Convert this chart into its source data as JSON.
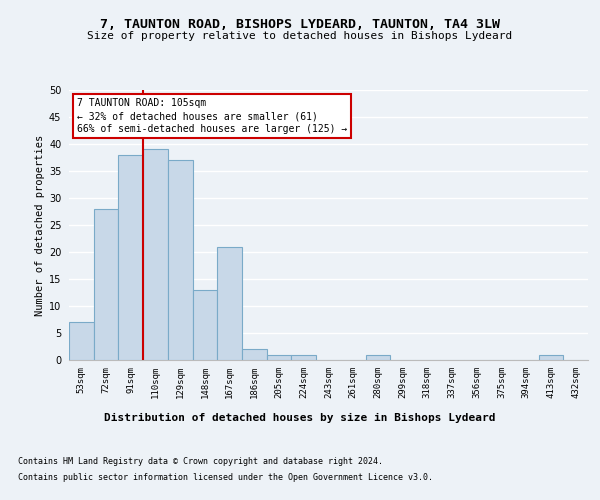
{
  "title": "7, TAUNTON ROAD, BISHOPS LYDEARD, TAUNTON, TA4 3LW",
  "subtitle": "Size of property relative to detached houses in Bishops Lydeard",
  "xlabel": "Distribution of detached houses by size in Bishops Lydeard",
  "ylabel": "Number of detached properties",
  "categories": [
    "53sqm",
    "72sqm",
    "91sqm",
    "110sqm",
    "129sqm",
    "148sqm",
    "167sqm",
    "186sqm",
    "205sqm",
    "224sqm",
    "243sqm",
    "261sqm",
    "280sqm",
    "299sqm",
    "318sqm",
    "337sqm",
    "356sqm",
    "375sqm",
    "394sqm",
    "413sqm",
    "432sqm"
  ],
  "values": [
    7,
    28,
    38,
    39,
    37,
    13,
    21,
    2,
    1,
    1,
    0,
    0,
    1,
    0,
    0,
    0,
    0,
    0,
    0,
    1,
    0
  ],
  "bar_color": "#c8d8e8",
  "bar_edge_color": "#7aaac8",
  "bar_linewidth": 0.8,
  "vline_color": "#cc0000",
  "vline_x": 2.5,
  "annotation_text": "7 TAUNTON ROAD: 105sqm\n← 32% of detached houses are smaller (61)\n66% of semi-detached houses are larger (125) →",
  "annotation_box_color": "white",
  "annotation_box_edge_color": "#cc0000",
  "annotation_fontsize": 7.0,
  "ylim": [
    0,
    50
  ],
  "yticks": [
    0,
    5,
    10,
    15,
    20,
    25,
    30,
    35,
    40,
    45,
    50
  ],
  "title_fontsize": 9.5,
  "subtitle_fontsize": 8.0,
  "xlabel_fontsize": 8.0,
  "ylabel_fontsize": 7.5,
  "tick_fontsize": 6.5,
  "ytick_fontsize": 7.0,
  "footer_line1": "Contains HM Land Registry data © Crown copyright and database right 2024.",
  "footer_line2": "Contains public sector information licensed under the Open Government Licence v3.0.",
  "footer_fontsize": 6.0,
  "bg_color": "#edf2f7",
  "plot_bg_color": "#edf2f7",
  "grid_color": "white",
  "grid_linewidth": 1.0
}
